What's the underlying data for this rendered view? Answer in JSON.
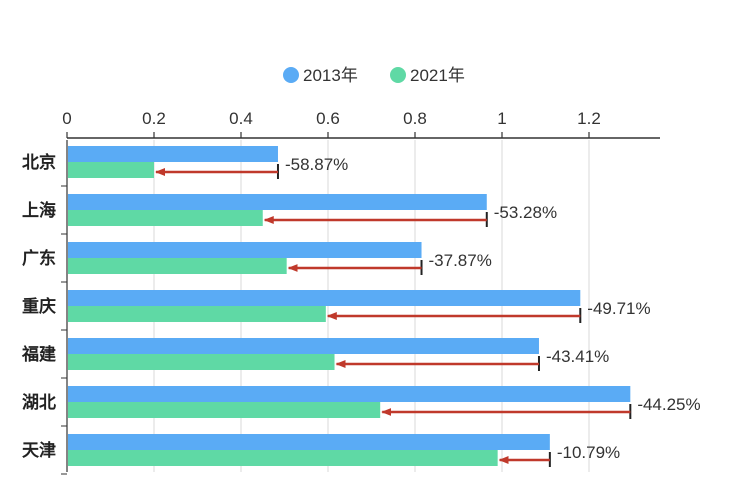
{
  "chart_data": {
    "type": "bar",
    "orientation": "horizontal",
    "title": "",
    "xlabel": "",
    "ylabel": "",
    "xlim": [
      0,
      1.3
    ],
    "x_ticks": [
      "0",
      "0.2",
      "0.4",
      "0.6",
      "0.8",
      "1",
      "1.2"
    ],
    "x_tick_values": [
      0,
      0.2,
      0.4,
      0.6,
      0.8,
      1.0,
      1.2
    ],
    "categories": [
      "北京",
      "上海",
      "广东",
      "重庆",
      "福建",
      "湖北",
      "天津"
    ],
    "series": [
      {
        "name": "2013年",
        "color": "#5aabf5",
        "values": [
          0.485,
          0.965,
          0.815,
          1.18,
          1.085,
          1.295,
          1.11
        ]
      },
      {
        "name": "2021年",
        "color": "#5fd9a5",
        "values": [
          0.2,
          0.45,
          0.505,
          0.595,
          0.615,
          0.72,
          0.99
        ]
      }
    ],
    "change_labels": [
      "-58.87%",
      "-53.28%",
      "-37.87%",
      "-49.71%",
      "-43.41%",
      "-44.25%",
      "-10.79%"
    ],
    "arrow_color": "#c0392b",
    "grid": "vertical",
    "legend_position": "top-center"
  }
}
